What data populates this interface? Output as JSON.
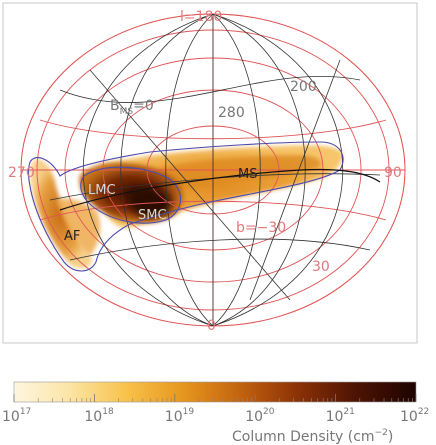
{
  "chart_data": {
    "type": "heatmap",
    "projection": "hammer-aitoff",
    "colorbar": {
      "label": "Column Density (cm",
      "label_exponent": "−2",
      "label_close": ")",
      "scale": "log",
      "range": [
        1e+17,
        1e+22
      ],
      "ticks": [
        {
          "base": "10",
          "exp": "17",
          "value": 1e+17
        },
        {
          "base": "10",
          "exp": "18",
          "value": 1e+18
        },
        {
          "base": "10",
          "exp": "19",
          "value": 1e+19
        },
        {
          "base": "10",
          "exp": "20",
          "value": 1e+20
        },
        {
          "base": "10",
          "exp": "21",
          "value": 1e+21
        },
        {
          "base": "10",
          "exp": "22",
          "value": 1e+22
        }
      ],
      "colors": [
        "#fdf6e0",
        "#fce4a4",
        "#f8c24a",
        "#e6961e",
        "#c46410",
        "#8e3306",
        "#4d1304",
        "#1e0300"
      ]
    },
    "grid": {
      "black_meridian_labels": [
        "280",
        "200"
      ],
      "black_parallel_labels": [
        "0"
      ],
      "red_labels": [
        "l=180",
        "270",
        "90",
        "b=−30",
        "30",
        "0"
      ],
      "ms_coord_label": "0",
      "ms_coord_symbol": "B",
      "ms_coord_subscript": "MS",
      "ms_coord_value": "=0"
    },
    "regions": [
      {
        "name": "MS",
        "label": "MS",
        "peak_log_density": 20.0
      },
      {
        "name": "LMC",
        "label": "LMC",
        "peak_log_density": 21.5
      },
      {
        "name": "SMC",
        "label": "SMC",
        "peak_log_density": 21.6
      },
      {
        "name": "AF",
        "label": "AF",
        "peak_log_density": 19.4
      }
    ],
    "colors": {
      "grid_red": "#e05555",
      "grid_black": "#333333",
      "contour": "#4b4bb0"
    }
  }
}
